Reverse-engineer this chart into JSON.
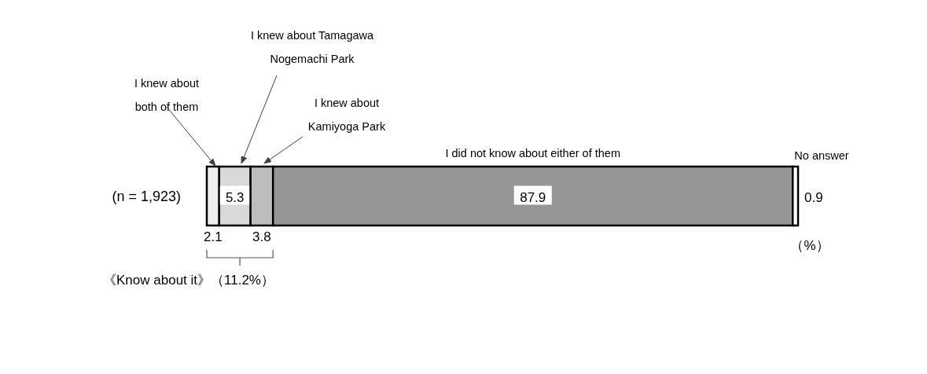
{
  "chart_data": {
    "type": "bar",
    "orientation": "horizontal",
    "stacked": true,
    "data_labels": true,
    "categories": [
      "(n = 1,923)"
    ],
    "series": [
      {
        "name": "I knew about both of them",
        "color": "#eeeeee",
        "values": [
          2.1
        ]
      },
      {
        "name": "I knew about Tamagawa Nogemachi Park",
        "color": "#d9d9d9",
        "values": [
          5.3
        ]
      },
      {
        "name": "I knew about Kamiyoga Park",
        "color": "#bdbdbd",
        "values": [
          3.8
        ]
      },
      {
        "name": "I did not know about either of them",
        "color": "#969696",
        "values": [
          87.9
        ]
      },
      {
        "name": "No answer",
        "color": "#ffffff",
        "values": [
          0.9
        ]
      }
    ],
    "annotations": [
      "《Know about it》（11.2%）",
      "（%）"
    ]
  }
}
